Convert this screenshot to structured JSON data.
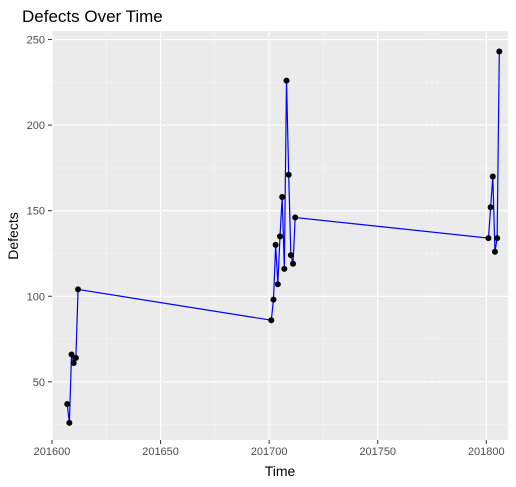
{
  "chart_data": {
    "type": "line",
    "title": "Defects Over Time",
    "xlabel": "Time",
    "ylabel": "Defects",
    "xlim": [
      201600,
      201810
    ],
    "ylim": [
      16,
      255
    ],
    "x_ticks": [
      201600,
      201650,
      201700,
      201750,
      201800
    ],
    "y_ticks": [
      50,
      100,
      150,
      200,
      250
    ],
    "x_tick_labels": [
      "201600",
      "201650",
      "201700",
      "201750",
      "201800"
    ],
    "y_tick_labels": [
      "50",
      "100",
      "150",
      "200",
      "250"
    ],
    "grid": true,
    "legend": "none",
    "colors": {
      "line": "#0000ff",
      "point": "#000000",
      "panel_background": "#ebebeb",
      "grid_major": "#ffffff",
      "grid_minor": "#f5f5f5"
    },
    "series": [
      {
        "x": [
          201607,
          201608,
          201609,
          201610,
          201611,
          201612,
          201701,
          201702,
          201703,
          201704,
          201705,
          201706,
          201707,
          201708,
          201709,
          201710,
          201711,
          201712,
          201801,
          201802,
          201803,
          201804,
          201805,
          201806
        ],
        "values": [
          37,
          26,
          66,
          61,
          64,
          104,
          86,
          98,
          130,
          107,
          135,
          158,
          116,
          226,
          171,
          124,
          119,
          146,
          134,
          152,
          170,
          126,
          134,
          243
        ]
      }
    ]
  }
}
